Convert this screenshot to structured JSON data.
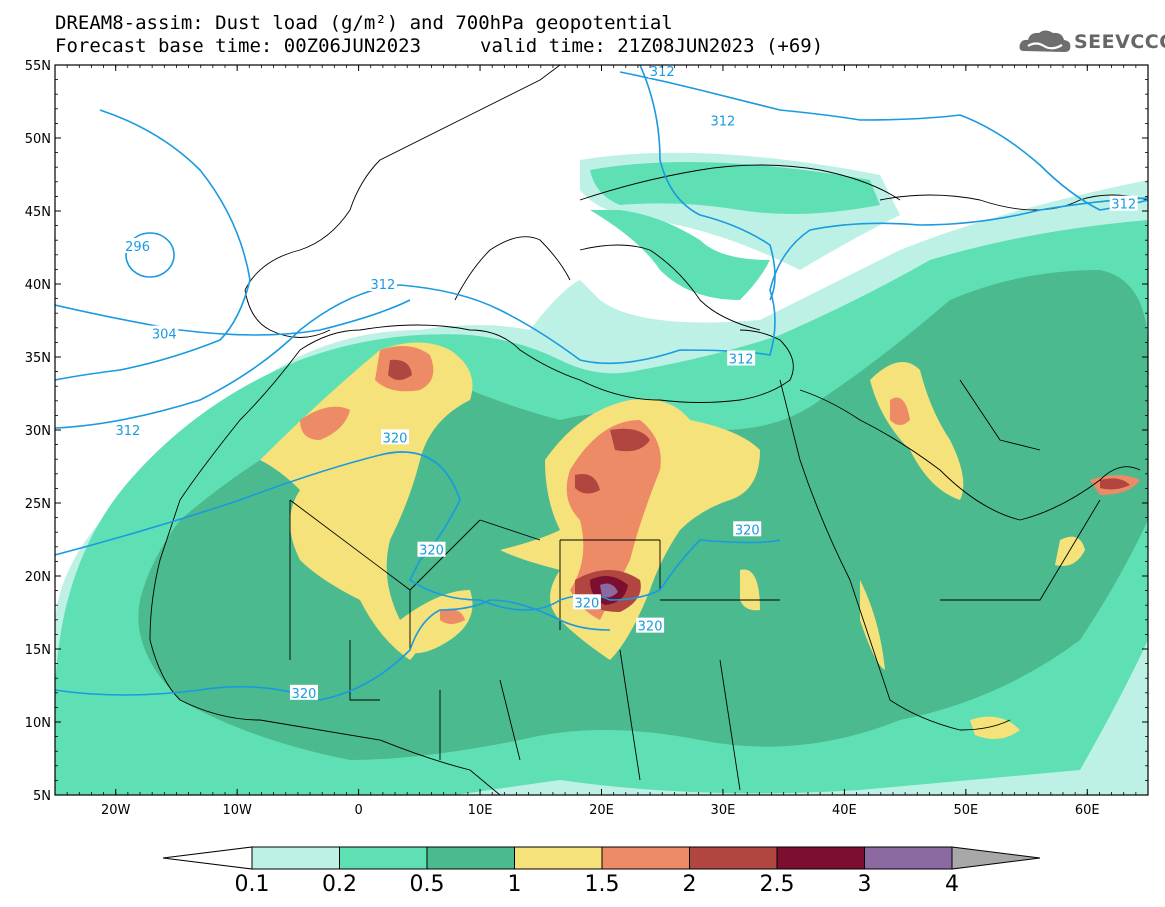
{
  "title": {
    "line1": "DREAM8-assim: Dust load (g/m²) and 700hPa geopotential",
    "line2": "Forecast base time: 00Z06JUN2023",
    "valid": "valid time: 21Z08JUN2023 (+69)"
  },
  "logo": {
    "text": "SEEVCCC",
    "icon": "cloud-logo-icon"
  },
  "axes": {
    "lon_range": [
      -25,
      65
    ],
    "lat_range": [
      5,
      55
    ],
    "lat_labels": [
      "55N",
      "50N",
      "45N",
      "40N",
      "35N",
      "30N",
      "25N",
      "20N",
      "15N",
      "10N",
      "5N"
    ],
    "lat_values": [
      55,
      50,
      45,
      40,
      35,
      30,
      25,
      20,
      15,
      10,
      5
    ],
    "lon_labels": [
      "20W",
      "10W",
      "0",
      "10E",
      "20E",
      "30E",
      "40E",
      "50E",
      "60E"
    ],
    "lon_values": [
      -20,
      -10,
      0,
      10,
      20,
      30,
      40,
      50,
      60
    ]
  },
  "contours": {
    "color": "#1a9ae0",
    "labels": [
      {
        "text": "312",
        "lon": 2,
        "lat": 40.0
      },
      {
        "text": "312",
        "lon": -19,
        "lat": 30.0
      },
      {
        "text": "312",
        "lon": 25,
        "lat": 54.6
      },
      {
        "text": "312",
        "lon": 30,
        "lat": 51.2
      },
      {
        "text": "312",
        "lon": 31.5,
        "lat": 34.9
      },
      {
        "text": "312",
        "lon": 63,
        "lat": 45.5
      },
      {
        "text": "296",
        "lon": -18.2,
        "lat": 42.6
      },
      {
        "text": "304",
        "lon": -16,
        "lat": 36.6
      },
      {
        "text": "320",
        "lon": 3,
        "lat": 29.5
      },
      {
        "text": "320",
        "lon": 6,
        "lat": 21.8
      },
      {
        "text": "320",
        "lon": 18.8,
        "lat": 18.2
      },
      {
        "text": "320",
        "lon": 24,
        "lat": 16.6
      },
      {
        "text": "320",
        "lon": 32,
        "lat": 23.2
      },
      {
        "text": "320",
        "lon": -4.5,
        "lat": 12.0
      }
    ]
  },
  "colorbar": {
    "levels": [
      "0.1",
      "0.2",
      "0.5",
      "1",
      "1.5",
      "2",
      "2.5",
      "3",
      "4"
    ],
    "colors": [
      "#bdf1e6",
      "#5fe0b4",
      "#4bba8e",
      "#f5e27a",
      "#ec8b66",
      "#b0463f",
      "#7c0f30",
      "#8c69a0",
      "#a8a8a8"
    ],
    "under_color": "#ffffff"
  }
}
